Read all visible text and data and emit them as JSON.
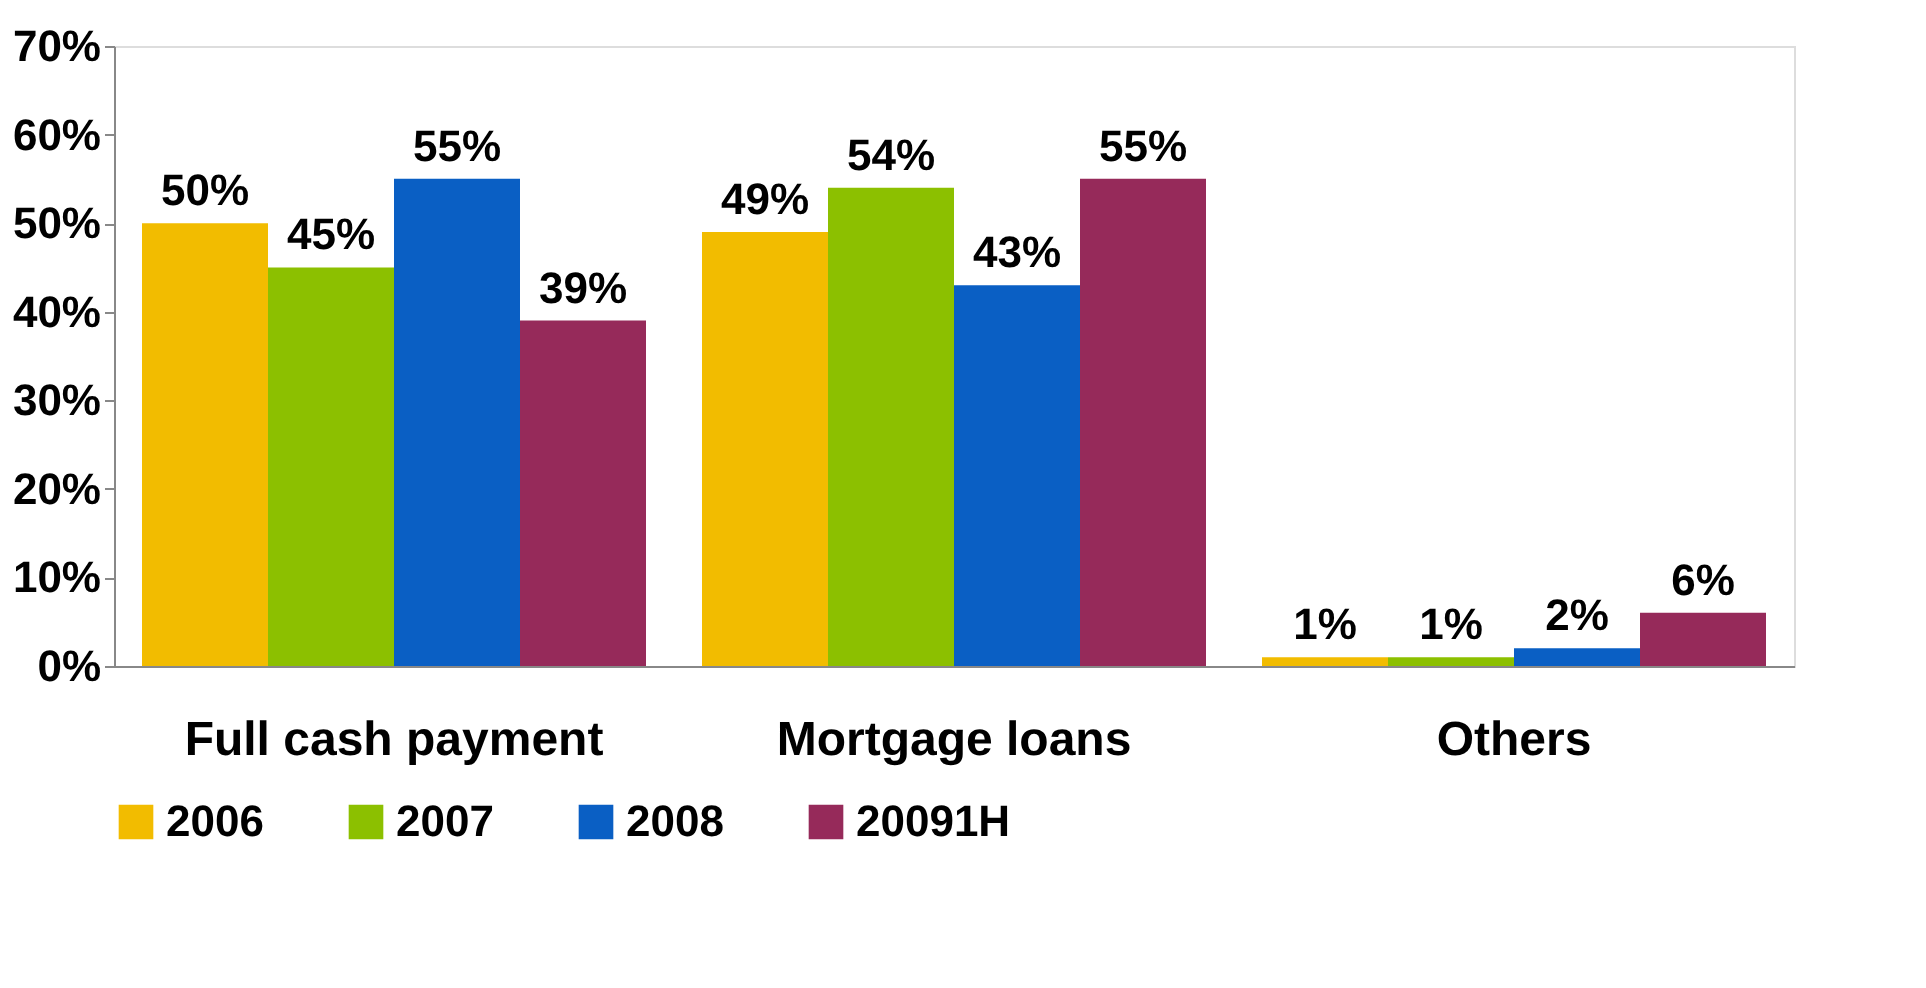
{
  "chart_data": {
    "type": "bar",
    "categories": [
      "Full cash payment",
      "Mortgage loans",
      "Others"
    ],
    "series": [
      {
        "name": "2006",
        "color": "#f2bc00",
        "values": [
          50,
          49,
          1
        ],
        "value_labels": [
          "50%",
          "49%",
          "1%"
        ]
      },
      {
        "name": "2007",
        "color": "#8cc000",
        "values": [
          45,
          54,
          1
        ],
        "value_labels": [
          "45%",
          "54%",
          "1%"
        ]
      },
      {
        "name": "2008",
        "color": "#0a5fc4",
        "values": [
          55,
          43,
          2
        ],
        "value_labels": [
          "55%",
          "43%",
          "2%"
        ]
      },
      {
        "name": "20091H",
        "color": "#962a5a",
        "values": [
          39,
          55,
          6
        ],
        "value_labels": [
          "39%",
          "55%",
          "6%"
        ]
      }
    ],
    "ylim": [
      0,
      70
    ],
    "yticks": [
      {
        "value": 0,
        "label": "0%"
      },
      {
        "value": 10,
        "label": "10%"
      },
      {
        "value": 20,
        "label": "20%"
      },
      {
        "value": 30,
        "label": "30%"
      },
      {
        "value": 40,
        "label": "40%"
      },
      {
        "value": 50,
        "label": "50%"
      },
      {
        "value": 60,
        "label": "60%"
      },
      {
        "value": 70,
        "label": "70%"
      }
    ],
    "grid": false,
    "legend": "bottom"
  }
}
